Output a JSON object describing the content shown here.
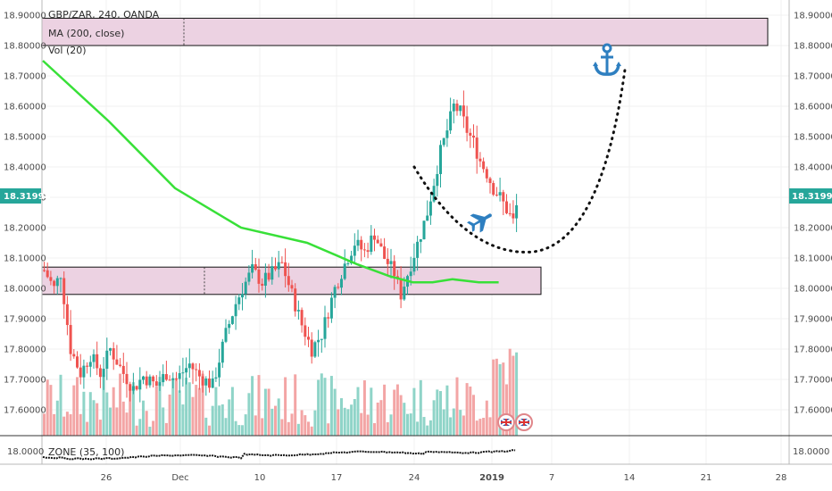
{
  "legend": {
    "symbol": "GBP/ZAR, 240, OANDA",
    "ma": "MA (200, close)",
    "vol": "Vol (20)",
    "zone": "ZONE (35, 100)"
  },
  "price_tag": "18.31994",
  "colors": {
    "up": "#26a69a",
    "down": "#ef5350",
    "vol_up": "#8fd4c8",
    "vol_down": "#f3a5a5",
    "ma": "#38e038",
    "zone_fill": "#ecd2e2",
    "tag": "#26a69a",
    "icon": "#2e7fc0",
    "path": "#111111"
  },
  "icons": [
    "anchor-icon",
    "airplane-icon",
    "uk-flag-icon",
    "uk-flag-icon"
  ],
  "chart_data": {
    "type": "candlestick",
    "title": "GBP/ZAR, 240, OANDA",
    "ylim": [
      17.56,
      18.93
    ],
    "y_ticks_left": [
      "18.90000",
      "18.80000",
      "18.70000",
      "18.60000",
      "18.50000",
      "18.40000",
      "18.30000",
      "18.20000",
      "18.10000",
      "18.00000",
      "17.90000",
      "17.80000",
      "17.70000",
      "17.60000"
    ],
    "y_ticks_right": [
      "18.90000",
      "18.80000",
      "18.70000",
      "18.60000",
      "18.50000",
      "18.40000",
      "18.30000",
      "18.20000",
      "18.10000",
      "18.00000",
      "17.90000",
      "17.80000",
      "17.70000",
      "17.60000"
    ],
    "x_ticks": [
      "26",
      "Dec",
      "10",
      "17",
      "24",
      "2019",
      "7",
      "14",
      "21",
      "28"
    ],
    "zone_axis_label": "18.0000",
    "zones": [
      {
        "from": 18.8,
        "to": 18.89
      },
      {
        "from": 17.98,
        "to": 18.07
      }
    ],
    "price_path": [
      [
        0,
        18.06
      ],
      [
        3,
        18.0
      ],
      [
        5,
        18.05
      ],
      [
        8,
        17.8
      ],
      [
        11,
        17.72
      ],
      [
        14,
        17.78
      ],
      [
        17,
        17.72
      ],
      [
        20,
        17.8
      ],
      [
        24,
        17.72
      ],
      [
        27,
        17.67
      ],
      [
        30,
        17.71
      ],
      [
        34,
        17.68
      ],
      [
        37,
        17.72
      ],
      [
        40,
        17.7
      ],
      [
        44,
        17.75
      ],
      [
        47,
        17.71
      ],
      [
        51,
        17.68
      ],
      [
        55,
        17.85
      ],
      [
        58,
        17.95
      ],
      [
        60,
        18.0
      ],
      [
        63,
        18.06
      ],
      [
        66,
        18.02
      ],
      [
        69,
        18.05
      ],
      [
        72,
        18.08
      ],
      [
        75,
        17.98
      ],
      [
        78,
        17.88
      ],
      [
        81,
        17.8
      ],
      [
        84,
        17.85
      ],
      [
        88,
        18.0
      ],
      [
        91,
        18.08
      ],
      [
        94,
        18.15
      ],
      [
        97,
        18.12
      ],
      [
        100,
        18.18
      ],
      [
        103,
        18.1
      ],
      [
        106,
        18.05
      ],
      [
        108,
        17.98
      ],
      [
        111,
        18.08
      ],
      [
        114,
        18.18
      ],
      [
        116,
        18.25
      ],
      [
        118,
        18.35
      ],
      [
        120,
        18.45
      ],
      [
        122,
        18.52
      ],
      [
        124,
        18.6
      ],
      [
        126,
        18.58
      ],
      [
        128,
        18.52
      ],
      [
        130,
        18.48
      ],
      [
        132,
        18.42
      ],
      [
        134,
        18.38
      ],
      [
        136,
        18.33
      ],
      [
        138,
        18.3
      ],
      [
        140,
        18.26
      ],
      [
        142,
        18.22
      ],
      [
        143,
        18.27
      ]
    ],
    "ma_200": [
      [
        0,
        18.75
      ],
      [
        20,
        18.55
      ],
      [
        40,
        18.33
      ],
      [
        60,
        18.2
      ],
      [
        80,
        18.15
      ],
      [
        95,
        18.08
      ],
      [
        105,
        18.04
      ],
      [
        112,
        18.02
      ],
      [
        118,
        18.02
      ],
      [
        124,
        18.03
      ],
      [
        132,
        18.02
      ],
      [
        138,
        18.02
      ]
    ],
    "projection": [
      {
        "x": "24",
        "y": 18.4
      },
      {
        "x": "2019",
        "y": 18.12
      },
      {
        "x": "7",
        "y": 18.13
      },
      {
        "x": "14",
        "y": 18.72
      }
    ]
  }
}
